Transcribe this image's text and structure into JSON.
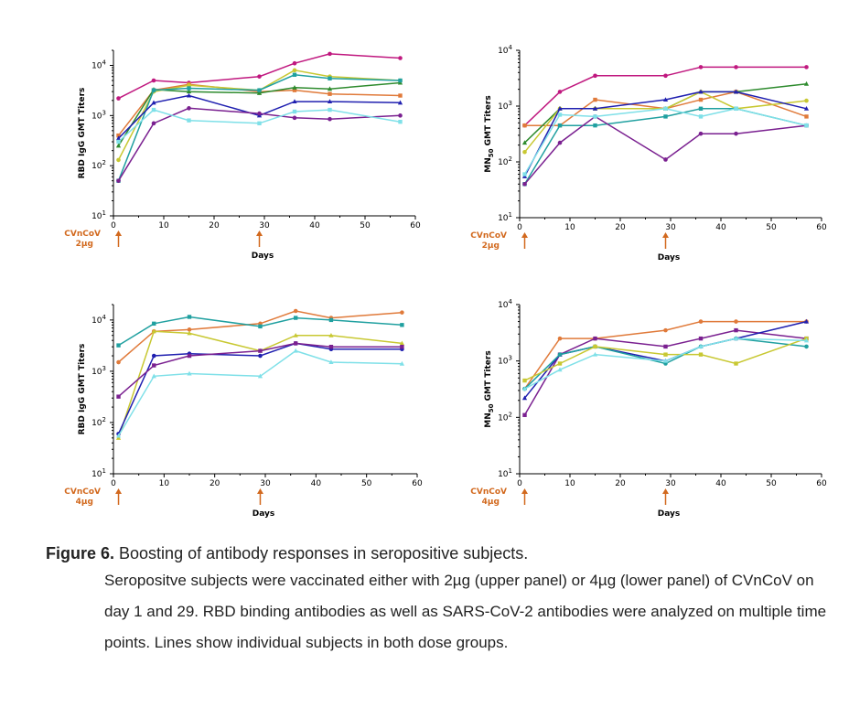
{
  "caption": {
    "label": "Figure 6.",
    "title": "Boosting of antibody responses in seropositive subjects.",
    "body": "Seropositve subjects were vaccinated either with 2µg (upper panel) or 4µg (lower panel) of CVnCoV on day 1 and 29. RBD binding antibodies as well as SARS-CoV-2 antibodies were analyzed on multiple time points. Lines show individual subjects in both dose groups."
  },
  "colors": {
    "magenta": "#c0187f",
    "orange": "#e07a3a",
    "green": "#2e8b2e",
    "lime": "#c8c832",
    "teal": "#20a0a0",
    "blue": "#2020b0",
    "purple": "#7a2090",
    "cyan": "#7fe0e8",
    "annotation": "#d2691e"
  },
  "chart_data": [
    {
      "type": "line",
      "panel": "top-left",
      "ylabel": "RBD IgG GMT Titers",
      "xlabel": "Days",
      "xlim": [
        0,
        60
      ],
      "xticks": [
        "0",
        "10",
        "20",
        "30",
        "40",
        "50",
        "60"
      ],
      "ylim": [
        10,
        20000
      ],
      "yscale": "log",
      "yticks": [
        {
          "value": 10,
          "base": "10",
          "exp": "1"
        },
        {
          "value": 100,
          "base": "10",
          "exp": "2"
        },
        {
          "value": 1000,
          "base": "10",
          "exp": "3"
        },
        {
          "value": 10000,
          "base": "10",
          "exp": "4"
        }
      ],
      "annotation": {
        "line1": "CVnCoV",
        "line2": "2µg",
        "arrows_at": [
          1,
          29
        ]
      },
      "series": [
        {
          "color": "#c0187f",
          "x": [
            1,
            8,
            15,
            29,
            36,
            43,
            57
          ],
          "y": [
            2200,
            5000,
            4500,
            6000,
            11000,
            17000,
            14000
          ]
        },
        {
          "color": "#e07a3a",
          "x": [
            1,
            8,
            15,
            29,
            36,
            43,
            57
          ],
          "y": [
            400,
            3200,
            4200,
            3000,
            3200,
            2700,
            2500
          ]
        },
        {
          "color": "#2e8b2e",
          "x": [
            1,
            8,
            15,
            29,
            36,
            43,
            57
          ],
          "y": [
            250,
            3300,
            3000,
            2800,
            3600,
            3400,
            4500
          ]
        },
        {
          "color": "#c8c832",
          "x": [
            1,
            8,
            15,
            29,
            36,
            43,
            57
          ],
          "y": [
            130,
            3000,
            4000,
            3200,
            8000,
            6000,
            5000
          ]
        },
        {
          "color": "#20a0a0",
          "x": [
            1,
            8,
            15,
            29,
            36,
            43,
            57
          ],
          "y": [
            50,
            3200,
            3500,
            3200,
            6500,
            5500,
            5000
          ]
        },
        {
          "color": "#2020b0",
          "x": [
            1,
            8,
            15,
            29,
            36,
            43,
            57
          ],
          "y": [
            350,
            1800,
            2500,
            1000,
            1900,
            1900,
            1800
          ]
        },
        {
          "color": "#7a2090",
          "x": [
            1,
            8,
            15,
            29,
            36,
            43,
            57
          ],
          "y": [
            50,
            700,
            1400,
            1100,
            900,
            850,
            1000
          ]
        },
        {
          "color": "#7fe0e8",
          "x": [
            1,
            8,
            15,
            29,
            36,
            43,
            57
          ],
          "y": [
            300,
            1300,
            800,
            700,
            1200,
            1300,
            750
          ]
        }
      ]
    },
    {
      "type": "line",
      "panel": "top-right",
      "ylabel": "MN50 GMT Titers",
      "ylabel_main": "MN",
      "ylabel_sub": "50",
      "ylabel_rest": " GMT Titers",
      "xlabel": "Days",
      "xlim": [
        0,
        60
      ],
      "xticks": [
        "0",
        "10",
        "20",
        "30",
        "40",
        "50",
        "60"
      ],
      "ylim": [
        10,
        10000
      ],
      "yscale": "log",
      "yticks": [
        {
          "value": 10,
          "base": "10",
          "exp": "1"
        },
        {
          "value": 100,
          "base": "10",
          "exp": "2"
        },
        {
          "value": 1000,
          "base": "10",
          "exp": "3"
        },
        {
          "value": 10000,
          "base": "10",
          "exp": "4"
        }
      ],
      "annotation": {
        "line1": "CVnCoV",
        "line2": "2µg",
        "arrows_at": [
          1,
          29
        ]
      },
      "series": [
        {
          "color": "#c0187f",
          "x": [
            1,
            8,
            15,
            29,
            36,
            43,
            57
          ],
          "y": [
            450,
            1800,
            3500,
            3500,
            5000,
            5000,
            5000
          ]
        },
        {
          "color": "#e07a3a",
          "x": [
            1,
            8,
            15,
            29,
            36,
            43,
            57
          ],
          "y": [
            450,
            450,
            1300,
            900,
            1300,
            1800,
            650
          ]
        },
        {
          "color": "#2e8b2e",
          "x": [
            1,
            8,
            15,
            29,
            36,
            43,
            57
          ],
          "y": [
            220,
            900,
            900,
            900,
            1800,
            1800,
            2500
          ]
        },
        {
          "color": "#c8c832",
          "x": [
            1,
            8,
            15,
            29,
            36,
            43,
            57
          ],
          "y": [
            150,
            900,
            900,
            900,
            1800,
            900,
            1250
          ]
        },
        {
          "color": "#20a0a0",
          "x": [
            1,
            8,
            15,
            29,
            36,
            43,
            57
          ],
          "y": [
            40,
            450,
            450,
            650,
            900,
            900,
            450
          ]
        },
        {
          "color": "#2020b0",
          "x": [
            1,
            8,
            15,
            29,
            36,
            43,
            57
          ],
          "y": [
            55,
            900,
            900,
            1300,
            1800,
            1800,
            900
          ]
        },
        {
          "color": "#7a2090",
          "x": [
            1,
            8,
            15,
            29,
            36,
            43,
            57
          ],
          "y": [
            40,
            220,
            650,
            110,
            320,
            320,
            450
          ]
        },
        {
          "color": "#7fe0e8",
          "x": [
            1,
            8,
            15,
            29,
            36,
            43,
            57
          ],
          "y": [
            60,
            700,
            650,
            900,
            650,
            900,
            450
          ]
        }
      ]
    },
    {
      "type": "line",
      "panel": "bottom-left",
      "ylabel": "RBD IgG GMT Titers",
      "xlabel": "Days",
      "xlim": [
        0,
        60
      ],
      "xticks": [
        "0",
        "10",
        "20",
        "30",
        "40",
        "50",
        "60"
      ],
      "ylim": [
        10,
        20000
      ],
      "yscale": "log",
      "yticks": [
        {
          "value": 10,
          "base": "10",
          "exp": "1"
        },
        {
          "value": 100,
          "base": "10",
          "exp": "2"
        },
        {
          "value": 1000,
          "base": "10",
          "exp": "3"
        },
        {
          "value": 10000,
          "base": "10",
          "exp": "4"
        }
      ],
      "annotation": {
        "line1": "CVnCoV",
        "line2": "4µg",
        "arrows_at": [
          1,
          29
        ]
      },
      "series": [
        {
          "color": "#e07a3a",
          "x": [
            1,
            8,
            15,
            29,
            36,
            43,
            57
          ],
          "y": [
            1500,
            6000,
            6500,
            8500,
            15000,
            11000,
            14000
          ]
        },
        {
          "color": "#20a0a0",
          "x": [
            1,
            8,
            15,
            29,
            36,
            43,
            57
          ],
          "y": [
            3200,
            8500,
            11500,
            7500,
            11000,
            10000,
            8000
          ]
        },
        {
          "color": "#c8c832",
          "x": [
            1,
            8,
            15,
            29,
            36,
            43,
            57
          ],
          "y": [
            50,
            6000,
            5500,
            2500,
            5000,
            5000,
            3500
          ]
        },
        {
          "color": "#2020b0",
          "x": [
            1,
            8,
            15,
            29,
            36,
            43,
            57
          ],
          "y": [
            60,
            2000,
            2200,
            2000,
            3500,
            2700,
            2700
          ]
        },
        {
          "color": "#7a2090",
          "x": [
            1,
            8,
            15,
            29,
            36,
            43,
            57
          ],
          "y": [
            320,
            1300,
            2000,
            2500,
            3500,
            3000,
            3000
          ]
        },
        {
          "color": "#7fe0e8",
          "x": [
            1,
            8,
            15,
            29,
            36,
            43,
            57
          ],
          "y": [
            55,
            800,
            900,
            800,
            2500,
            1500,
            1400
          ]
        }
      ]
    },
    {
      "type": "line",
      "panel": "bottom-right",
      "ylabel": "MN50 GMT Titers",
      "ylabel_main": "MN",
      "ylabel_sub": "50",
      "ylabel_rest": " GMT Titers",
      "xlabel": "Days",
      "xlim": [
        0,
        60
      ],
      "xticks": [
        "0",
        "10",
        "20",
        "30",
        "40",
        "50",
        "60"
      ],
      "ylim": [
        10,
        10000
      ],
      "yscale": "log",
      "yticks": [
        {
          "value": 10,
          "base": "10",
          "exp": "1"
        },
        {
          "value": 100,
          "base": "10",
          "exp": "2"
        },
        {
          "value": 1000,
          "base": "10",
          "exp": "3"
        },
        {
          "value": 10000,
          "base": "10",
          "exp": "4"
        }
      ],
      "annotation": {
        "line1": "CVnCoV",
        "line2": "4µg",
        "arrows_at": [
          1,
          29
        ]
      },
      "series": [
        {
          "color": "#e07a3a",
          "x": [
            1,
            8,
            15,
            29,
            36,
            43,
            57
          ],
          "y": [
            320,
            2500,
            2500,
            3500,
            5000,
            5000,
            5000
          ]
        },
        {
          "color": "#7a2090",
          "x": [
            1,
            8,
            15,
            29,
            36,
            43,
            57
          ],
          "y": [
            110,
            1300,
            2500,
            1800,
            2500,
            3500,
            2500
          ]
        },
        {
          "color": "#2020b0",
          "x": [
            1,
            8,
            15,
            29,
            36,
            43,
            57
          ],
          "y": [
            220,
            1300,
            1800,
            1000,
            1800,
            2500,
            5000
          ]
        },
        {
          "color": "#20a0a0",
          "x": [
            1,
            8,
            15,
            29,
            36,
            43,
            57
          ],
          "y": [
            320,
            1300,
            1800,
            900,
            1800,
            2500,
            1800
          ]
        },
        {
          "color": "#c8c832",
          "x": [
            1,
            8,
            15,
            29,
            36,
            43,
            57
          ],
          "y": [
            450,
            900,
            1800,
            1300,
            1300,
            900,
            2500
          ]
        },
        {
          "color": "#7fe0e8",
          "x": [
            1,
            8,
            15,
            29,
            36,
            43,
            57
          ],
          "y": [
            320,
            700,
            1300,
            1000,
            1800,
            2500,
            2300
          ]
        }
      ]
    }
  ]
}
